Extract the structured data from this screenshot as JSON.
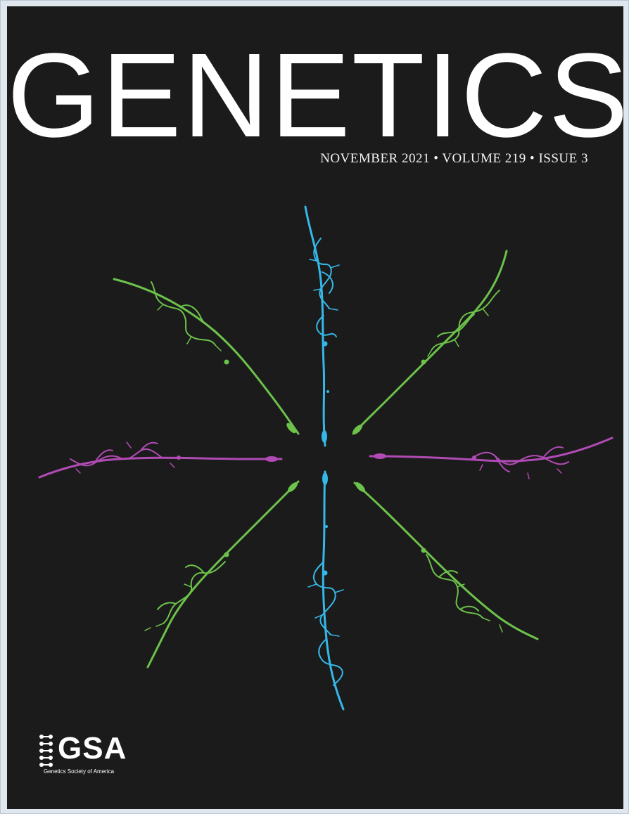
{
  "cover": {
    "title": "GENETICS",
    "issue_line": "NOVEMBER 2021 • VOLUME 219 • ISSUE 3",
    "publisher": {
      "logo_text": "GSA",
      "name": "Genetics Society of America"
    },
    "colors": {
      "background": "#1b1b1b",
      "text": "#ffffff",
      "neuron_cyan": "#35b8e8",
      "neuron_green": "#6cc24a",
      "neuron_magenta": "#b04bb5"
    },
    "artwork": {
      "subject": "neuron-radial-arrangement",
      "arms": 8
    }
  }
}
